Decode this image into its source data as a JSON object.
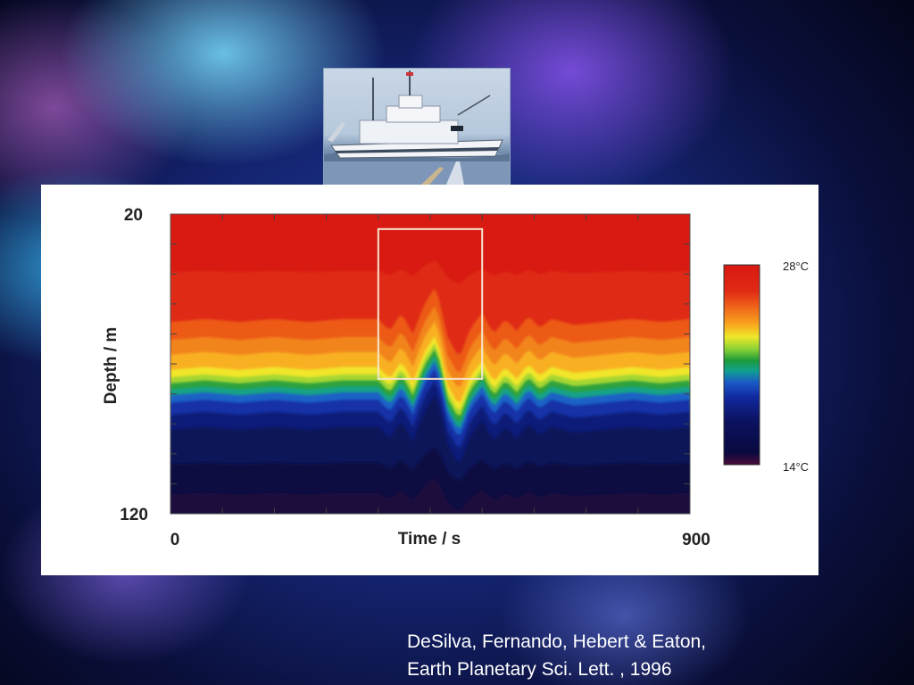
{
  "chart_data": {
    "type": "heatmap",
    "title": "",
    "xlabel": "Time / s",
    "ylabel": "Depth / m",
    "x_tick_labels": [
      "0",
      "900"
    ],
    "y_tick_labels": [
      "20",
      "120"
    ],
    "xlim": [
      0,
      900
    ],
    "ylim": [
      20,
      120
    ],
    "colorbar": {
      "max_label": "28°C",
      "min_label": "14°C",
      "range_celsius": [
        14,
        28
      ]
    },
    "highlight_box": {
      "x": [
        360,
        540
      ],
      "depth": [
        25,
        75
      ]
    },
    "thermocline": {
      "baseline_depth_m": 75,
      "times_s": [
        0,
        60,
        120,
        180,
        240,
        300,
        360,
        380,
        400,
        420,
        440,
        460,
        480,
        500,
        520,
        540,
        560,
        580,
        600,
        620,
        640,
        660,
        700,
        750,
        800,
        850,
        900
      ],
      "depth_m": [
        76,
        75,
        76,
        75,
        76,
        75,
        75,
        79,
        73,
        80,
        70,
        64,
        81,
        88,
        78,
        73,
        80,
        75,
        79,
        74,
        78,
        75,
        77,
        76,
        75,
        76,
        75
      ]
    },
    "colors": {
      "warm": "#d81a12",
      "cold": "#0a0e4a"
    }
  },
  "citation": {
    "line1": "DeSilva, Fernando, Hebert & Eaton,",
    "line2": "Earth Planetary Sci. Lett. , 1996"
  }
}
